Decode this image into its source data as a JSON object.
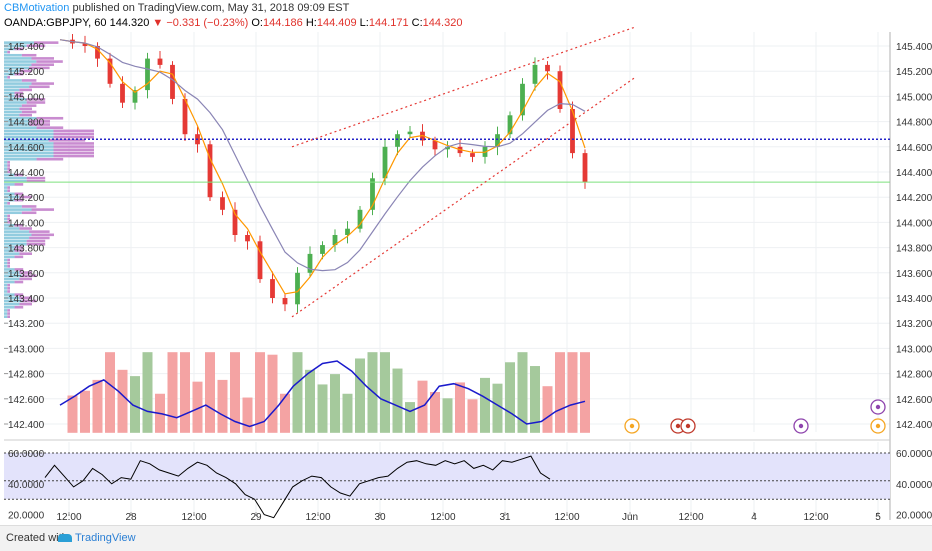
{
  "header": {
    "author": "CBMotivation",
    "published_text": "published on TradingView.com, May 31, 2018 09:09 EST",
    "symbol": "OANDA:GBPJPY, 60",
    "last": "144.320",
    "change": "−0.331 (−0.23%)",
    "o_label": "O:",
    "o_value": "144.186",
    "h_label": "H:",
    "h_value": "144.409",
    "l_label": "L:",
    "l_value": "144.171",
    "c_label": "C:",
    "c_value": "144.320"
  },
  "footer": {
    "created_with": "Created with",
    "brand": "TradingView"
  },
  "colors": {
    "up": "#4caf50",
    "down": "#e53935",
    "ema": "#ff9800",
    "sma": "#8a85b5",
    "trend": "#e53935",
    "pivot": "#2424c8",
    "hline": "#7ee07e",
    "vol_ma": "#1a1acc",
    "rsi_line": "#000000",
    "rsi_band": "#e3e3fb"
  },
  "chart_data": [
    {
      "type": "candlestick",
      "symbol": "OANDA:GBPJPY",
      "interval": "60",
      "ylim": [
        143.2,
        145.5
      ],
      "price_ticks": [
        "145.400",
        "145.200",
        "145.000",
        "144.800",
        "144.600",
        "144.400",
        "144.200",
        "144.000",
        "143.800",
        "143.600",
        "143.400",
        "143.200"
      ],
      "volume_ticks": [
        "143.000",
        "142.800",
        "142.600",
        "142.400"
      ],
      "x_ticks": [
        "12:00",
        "28",
        "12:00",
        "29",
        "12:00",
        "30",
        "12:00",
        "31",
        "12:00",
        "Jun",
        "12:00",
        "4",
        "12:00",
        "5"
      ],
      "close_path": [
        145.45,
        145.42,
        145.4,
        145.3,
        145.1,
        144.95,
        145.05,
        145.3,
        145.25,
        144.98,
        144.7,
        144.62,
        144.2,
        144.1,
        143.9,
        143.85,
        143.55,
        143.4,
        143.35,
        143.6,
        143.75,
        143.82,
        143.9,
        143.95,
        144.1,
        144.35,
        144.6,
        144.7,
        144.72,
        144.65,
        144.58,
        144.6,
        144.55,
        144.52,
        144.6,
        144.7,
        144.85,
        145.1,
        145.25,
        145.2,
        144.9,
        144.55,
        144.32
      ],
      "horizontal_lines": [
        {
          "price": 144.66,
          "style": "dotted",
          "color": "pivot"
        },
        {
          "price": 144.32,
          "style": "solid",
          "color": "hline"
        }
      ],
      "trendlines": [
        {
          "from": {
            "date": "May 29",
            "price": 144.6
          },
          "to": {
            "date": "Jun 01",
            "price": 145.55
          }
        },
        {
          "from": {
            "date": "May 29",
            "price": 143.25
          },
          "to": {
            "date": "Jun 01",
            "price": 145.15
          }
        }
      ],
      "volume_ma_path": [
        142.55,
        142.62,
        142.7,
        142.75,
        142.66,
        142.55,
        142.5,
        142.48,
        142.45,
        142.5,
        142.55,
        142.48,
        142.42,
        142.38,
        142.42,
        142.55,
        142.7,
        142.8,
        142.88,
        142.9,
        142.82,
        142.7,
        142.6,
        142.55,
        142.5,
        142.55,
        142.7,
        142.72,
        142.68,
        142.62,
        142.55,
        142.48,
        142.4,
        142.42,
        142.5,
        142.55,
        142.58
      ]
    },
    {
      "type": "line",
      "name": "",
      "ylim": [
        15,
        70
      ],
      "y_ticks": [
        "60.0000",
        "40.0000",
        "20.0000"
      ],
      "band": [
        30,
        60
      ],
      "mid_level": 42,
      "values": [
        44,
        52,
        45,
        38,
        42,
        50,
        46,
        40,
        44,
        43,
        55,
        53,
        49,
        47,
        45,
        50,
        54,
        52,
        47,
        44,
        40,
        33,
        30,
        20,
        18,
        28,
        38,
        42,
        45,
        44,
        38,
        34,
        32,
        40,
        42,
        44,
        45,
        50,
        54,
        55,
        53,
        52,
        55,
        53,
        55,
        50,
        52,
        49,
        55,
        54,
        56,
        58,
        47,
        43
      ]
    }
  ]
}
